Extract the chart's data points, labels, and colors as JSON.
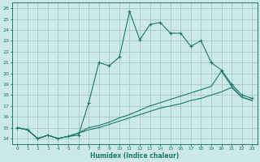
{
  "xlabel": "Humidex (Indice chaleur)",
  "background_color": "#cce8e8",
  "grid_color": "#aacccc",
  "line_color": "#1a7a6e",
  "xlim": [
    -0.5,
    23.5
  ],
  "ylim": [
    13.5,
    26.5
  ],
  "xticks": [
    0,
    1,
    2,
    3,
    4,
    5,
    6,
    7,
    8,
    9,
    10,
    11,
    12,
    13,
    14,
    15,
    16,
    17,
    18,
    19,
    20,
    21,
    22,
    23
  ],
  "yticks": [
    14,
    15,
    16,
    17,
    18,
    19,
    20,
    21,
    22,
    23,
    24,
    25,
    26
  ],
  "series1_x": [
    0,
    1,
    2,
    3,
    4,
    5,
    6,
    7,
    8,
    9,
    10,
    11,
    12,
    13,
    14,
    15,
    16,
    17,
    18,
    19,
    20,
    21,
    22,
    23
  ],
  "series1_y": [
    15.0,
    14.8,
    14.0,
    14.3,
    14.0,
    14.2,
    14.3,
    17.3,
    21.0,
    20.7,
    21.5,
    25.7,
    23.1,
    24.5,
    24.7,
    23.7,
    23.7,
    22.5,
    23.0,
    21.0,
    20.3,
    19.0,
    18.0,
    17.7
  ],
  "series2_x": [
    0,
    1,
    2,
    3,
    4,
    5,
    6,
    7,
    8,
    9,
    10,
    11,
    12,
    13,
    14,
    15,
    16,
    17,
    18,
    19,
    20,
    21,
    22,
    23
  ],
  "series2_y": [
    15.0,
    14.8,
    14.0,
    14.3,
    14.0,
    14.2,
    14.5,
    15.0,
    15.2,
    15.5,
    15.9,
    16.2,
    16.6,
    17.0,
    17.3,
    17.6,
    17.9,
    18.2,
    18.5,
    18.8,
    20.2,
    18.8,
    17.8,
    17.5
  ],
  "series3_x": [
    0,
    1,
    2,
    3,
    4,
    5,
    6,
    7,
    8,
    9,
    10,
    11,
    12,
    13,
    14,
    15,
    16,
    17,
    18,
    19,
    20,
    21,
    22,
    23
  ],
  "series3_y": [
    15.0,
    14.8,
    14.0,
    14.3,
    14.0,
    14.2,
    14.5,
    14.8,
    15.0,
    15.3,
    15.6,
    15.9,
    16.2,
    16.5,
    16.8,
    17.0,
    17.2,
    17.5,
    17.7,
    18.0,
    18.3,
    18.7,
    17.8,
    17.5
  ]
}
